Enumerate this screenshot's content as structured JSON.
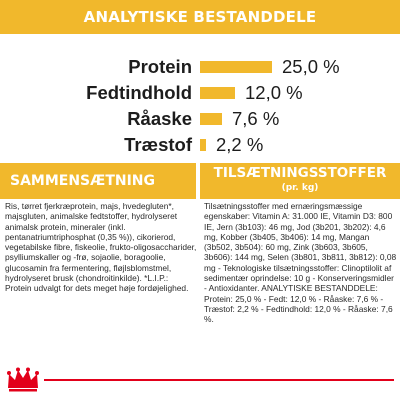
{
  "header": {
    "title": "ANALYTISKE BESTANDDELE"
  },
  "analysis": {
    "rows": [
      {
        "label": "Protein",
        "value": "25,0 %",
        "percent": 25.0
      },
      {
        "label": "Fedtindhold",
        "value": "12,0 %",
        "percent": 12.0
      },
      {
        "label": "Råaske",
        "value": "7,6 %",
        "percent": 7.6
      },
      {
        "label": "Træstof",
        "value": "2,2 %",
        "percent": 2.2
      }
    ]
  },
  "composition": {
    "title": "SAMMENSÆTNING",
    "text": "Ris, tørret fjerkræprotein, majs, hvedegluten*, majsgluten, animalske fedtstoffer, hydrolyseret animalsk protein, mineraler (inkl. pentanatriumtriphosphat (0,35 %)), cikorierod, vegetabilske fibre, fiskeolie, frukto-oligosaccharider, psylliumskaller og -frø, sojaolie, boragoolie, glucosamin fra fermentering, fløjlsblomstmel, hydrolyseret brusk (chondroitinkilde). *L.I.P.: Protein udvalgt for dets meget høje fordøjelighed."
  },
  "additives": {
    "title": "TILSÆTNINGSSTOFFER",
    "subtitle": "(pr. kg)",
    "text": "Tilsætningsstoffer med ernæringsmæssige egenskaber: Vitamin A: 31.000 IE, Vitamin D3: 800 IE, Jern (3b103): 46 mg, Jod (3b201, 3b202): 4,6 mg, Kobber (3b405, 3b406): 14 mg, Mangan (3b502, 3b504): 60 mg, Zink (3b603, 3b605, 3b606): 144 mg, Selen (3b801, 3b811, 3b812): 0,08 mg - Teknologiske tilsætningsstoffer: Clinoptilolit af sedimentær oprindelse: 10 g - Konserveringsmidler - Antioxidanter. ANALYTISKE BESTANDDELE: Protein: 25,0 % - Fedt: 12,0 % - Råaske: 7,6 % - Træstof: 2,2 % - Fedtindhold: 12,0 % - Råaske: 7,6 %."
  },
  "footer": {
    "logo_icon": "crown-logo-icon",
    "line_color": "#e2001a"
  },
  "colors": {
    "accent": "#f1b82c",
    "brand_red": "#e2001a"
  }
}
